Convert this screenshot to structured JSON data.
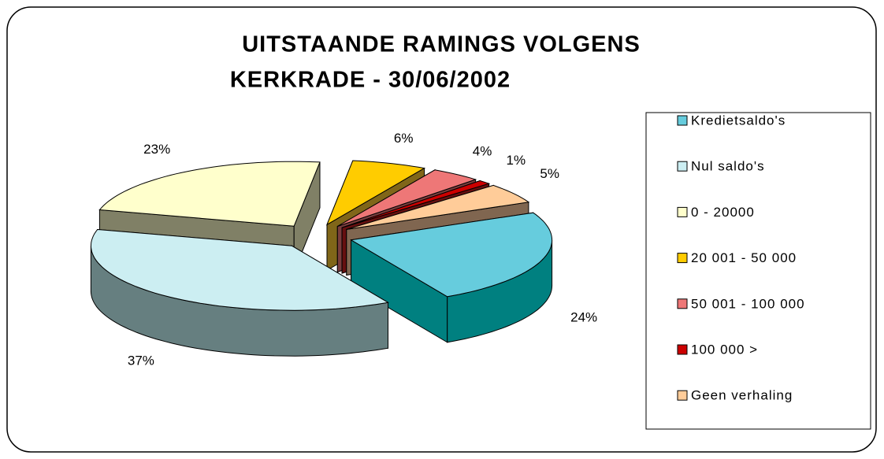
{
  "chart_data": {
    "type": "pie",
    "title": [
      "UITSTAANDE RAMINGS VOLGENS",
      "KERKRADE - 30/06/2002"
    ],
    "categories": [
      "Kredietsaldo's",
      "Nul saldo's",
      "0 - 20000",
      "20 001 - 50 000",
      "50 001 - 100 000",
      "100 000 >",
      "Geen verhaling"
    ],
    "values": [
      24,
      37,
      23,
      6,
      4,
      1,
      5
    ],
    "value_labels": [
      "24%",
      "37%",
      "23%",
      "6%",
      "4%",
      "1%",
      "5%"
    ],
    "colors": [
      "#66CCDD",
      "#CCEEF2",
      "#FFFFCC",
      "#FFCC00",
      "#EE7777",
      "#CC0000",
      "#FFCC99"
    ],
    "side_colors": [
      "#008080",
      "#667F80",
      "#808066",
      "#806619",
      "#7A3D3D",
      "#661010",
      "#806650"
    ],
    "legend": "right"
  }
}
